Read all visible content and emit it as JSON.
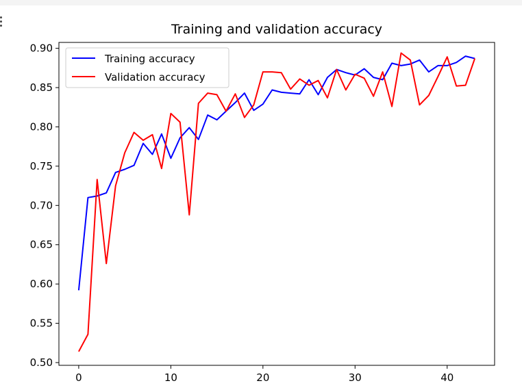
{
  "chart_data": {
    "type": "line",
    "title": "Training and validation accuracy",
    "xlabel": "",
    "ylabel": "",
    "xlim": [
      -2.15,
      45.15
    ],
    "ylim": [
      0.5,
      0.9
    ],
    "x_ticks": [
      0,
      10,
      20,
      30,
      40
    ],
    "y_ticks": [
      0.5,
      0.55,
      0.6,
      0.65,
      0.7,
      0.75,
      0.8,
      0.85,
      0.9
    ],
    "x_tick_labels": [
      "0",
      "10",
      "20",
      "30",
      "40"
    ],
    "y_tick_labels": [
      "0.50",
      "0.55",
      "0.60",
      "0.65",
      "0.70",
      "0.75",
      "0.80",
      "0.85",
      "0.90"
    ],
    "grid": false,
    "legend_position": "top-left",
    "x": [
      0,
      1,
      2,
      3,
      4,
      5,
      6,
      7,
      8,
      9,
      10,
      11,
      12,
      13,
      14,
      15,
      16,
      17,
      18,
      19,
      20,
      21,
      22,
      23,
      24,
      25,
      26,
      27,
      28,
      29,
      30,
      31,
      32,
      33,
      34,
      35,
      36,
      37,
      38,
      39,
      40,
      41,
      42,
      43
    ],
    "series": [
      {
        "name": "Training accuracy",
        "color": "#0000ff",
        "values": [
          0.592,
          0.71,
          0.712,
          0.716,
          0.742,
          0.746,
          0.751,
          0.779,
          0.765,
          0.791,
          0.76,
          0.786,
          0.799,
          0.784,
          0.815,
          0.809,
          0.82,
          0.831,
          0.843,
          0.821,
          0.829,
          0.847,
          0.844,
          0.843,
          0.842,
          0.86,
          0.841,
          0.863,
          0.873,
          0.869,
          0.866,
          0.874,
          0.863,
          0.86,
          0.881,
          0.878,
          0.88,
          0.885,
          0.87,
          0.878,
          0.878,
          0.882,
          0.89,
          0.887
        ]
      },
      {
        "name": "Validation accuracy",
        "color": "#ff0000",
        "values": [
          0.514,
          0.536,
          0.733,
          0.626,
          0.725,
          0.767,
          0.793,
          0.783,
          0.79,
          0.747,
          0.817,
          0.806,
          0.688,
          0.83,
          0.843,
          0.841,
          0.82,
          0.842,
          0.812,
          0.828,
          0.87,
          0.87,
          0.869,
          0.848,
          0.861,
          0.853,
          0.859,
          0.837,
          0.873,
          0.847,
          0.867,
          0.862,
          0.839,
          0.87,
          0.826,
          0.894,
          0.885,
          0.828,
          0.84,
          0.864,
          0.889,
          0.852,
          0.853,
          0.887
        ]
      }
    ]
  }
}
